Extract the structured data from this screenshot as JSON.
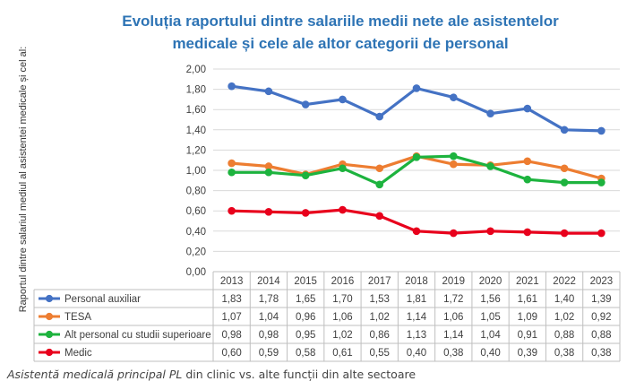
{
  "chart_data": {
    "type": "line",
    "title_line1": "Evoluția raportului dintre salariile medii nete ale asistentelor",
    "title_line2": "medicale și cele ale altor categorii de personal",
    "ylabel": "Raportul dintre salariul mediul al asistentei medicale și cel al:",
    "xlabel": "",
    "ylim": [
      0,
      2
    ],
    "ytick_values": [
      0,
      0.2,
      0.4,
      0.6,
      0.8,
      1.0,
      1.2,
      1.4,
      1.6,
      1.8,
      2.0
    ],
    "ytick_labels": [
      "0,00",
      "0,20",
      "0,40",
      "0,60",
      "0,80",
      "1,00",
      "1,20",
      "1,40",
      "1,60",
      "1,80",
      "2,00"
    ],
    "grid": true,
    "legend": "data-table-below",
    "categories": [
      "2013",
      "2014",
      "2015",
      "2016",
      "2017",
      "2018",
      "2019",
      "2020",
      "2021",
      "2022",
      "2023"
    ],
    "series": [
      {
        "name": "Personal auxiliar",
        "color": "#4472C4",
        "values": [
          1.83,
          1.78,
          1.65,
          1.7,
          1.53,
          1.81,
          1.72,
          1.56,
          1.61,
          1.4,
          1.39
        ],
        "labels": [
          "1,83",
          "1,78",
          "1,65",
          "1,70",
          "1,53",
          "1,81",
          "1,72",
          "1,56",
          "1,61",
          "1,40",
          "1,39"
        ]
      },
      {
        "name": "TESA",
        "color": "#ED7D31",
        "values": [
          1.07,
          1.04,
          0.96,
          1.06,
          1.02,
          1.14,
          1.06,
          1.05,
          1.09,
          1.02,
          0.92
        ],
        "labels": [
          "1,07",
          "1,04",
          "0,96",
          "1,06",
          "1,02",
          "1,14",
          "1,06",
          "1,05",
          "1,09",
          "1,02",
          "0,92"
        ]
      },
      {
        "name": "Alt personal cu studii superioare",
        "color": "#1DB33E",
        "values": [
          0.98,
          0.98,
          0.95,
          1.02,
          0.86,
          1.13,
          1.14,
          1.04,
          0.91,
          0.88,
          0.88
        ],
        "labels": [
          "0,98",
          "0,98",
          "0,95",
          "1,02",
          "0,86",
          "1,13",
          "1,14",
          "1,04",
          "0,91",
          "0,88",
          "0,88"
        ]
      },
      {
        "name": "Medic",
        "color": "#E8001C",
        "values": [
          0.6,
          0.59,
          0.58,
          0.61,
          0.55,
          0.4,
          0.38,
          0.4,
          0.39,
          0.38,
          0.38
        ],
        "labels": [
          "0,60",
          "0,59",
          "0,58",
          "0,61",
          "0,55",
          "0,40",
          "0,38",
          "0,40",
          "0,39",
          "0,38",
          "0,38"
        ]
      }
    ],
    "title_color": "#2E74B5"
  },
  "caption": {
    "part1": "Asistentă medicală principal PL",
    "part2": " din clinic vs. alte funcții din alte sectoare"
  }
}
